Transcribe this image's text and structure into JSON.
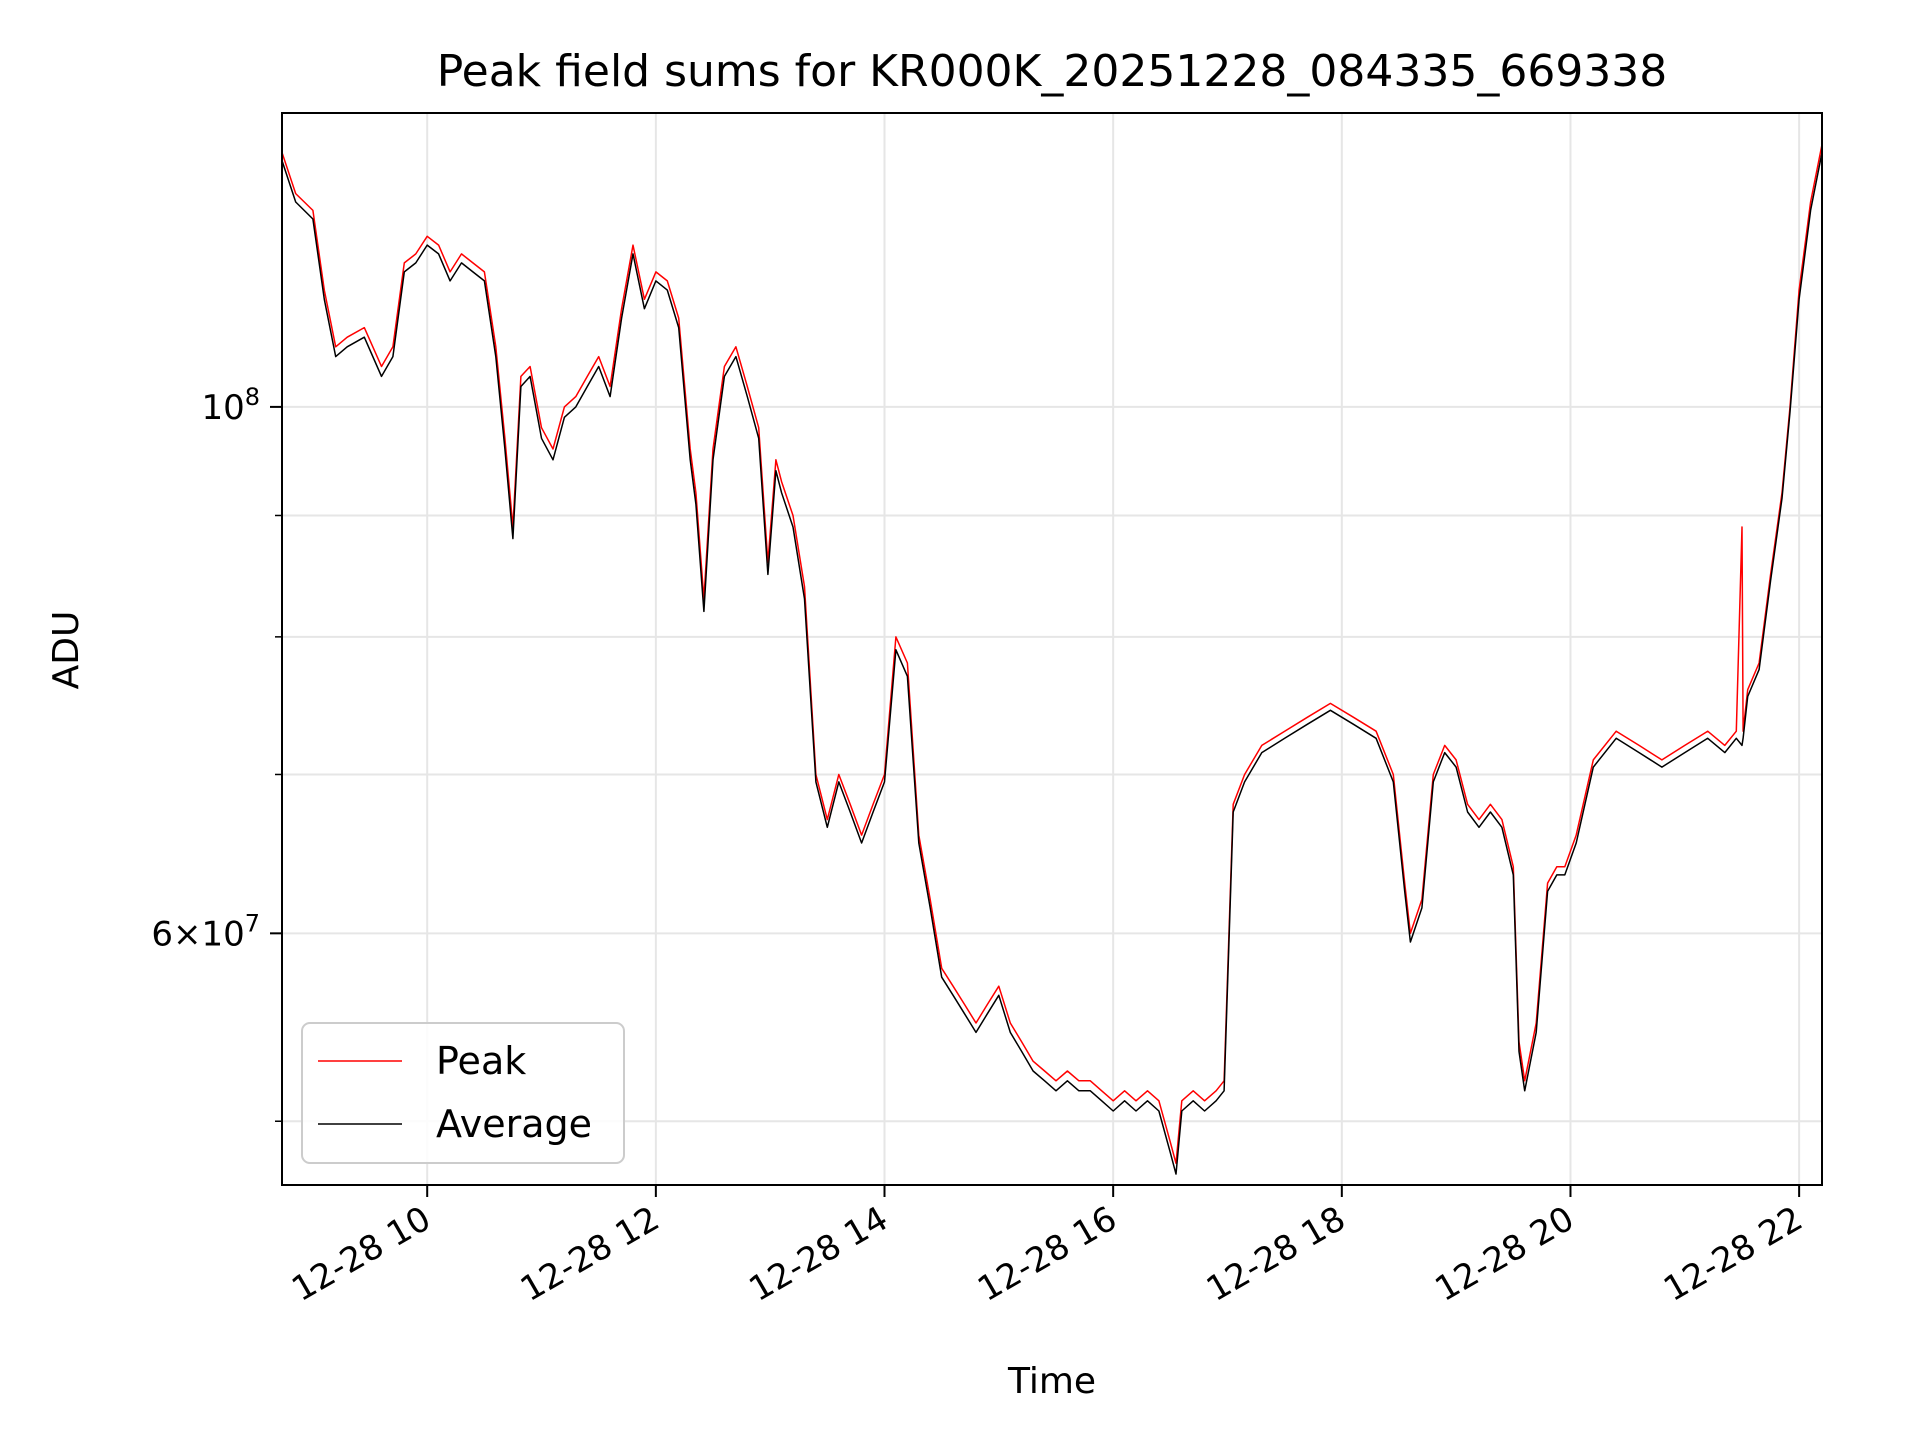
{
  "chart_data": {
    "type": "line",
    "title": "Peak field sums for KR000K_20251228_084335_669338",
    "xlabel": "Time",
    "ylabel": "ADU",
    "yscale": "log",
    "grid": true,
    "legend_location": "lower-left",
    "x_unit": "hours",
    "xlim": [
      8.73,
      22.2
    ],
    "ylim": [
      47000000,
      133000000
    ],
    "x_ticks": [
      {
        "value": 10,
        "label": "12-28 10"
      },
      {
        "value": 12,
        "label": "12-28 12"
      },
      {
        "value": 14,
        "label": "12-28 14"
      },
      {
        "value": 16,
        "label": "12-28 16"
      },
      {
        "value": 18,
        "label": "12-28 18"
      },
      {
        "value": 20,
        "label": "12-28 20"
      },
      {
        "value": 22,
        "label": "12-28 22"
      }
    ],
    "y_major_ticks": [
      {
        "value": 60000000,
        "mantissa": "6",
        "base": "10",
        "exp": "7"
      },
      {
        "value": 100000000,
        "mantissa": "",
        "base": "10",
        "exp": "8"
      }
    ],
    "y_minor_ticks": [
      50000000,
      70000000,
      80000000,
      90000000
    ],
    "series": [
      {
        "name": "Peak",
        "color": "#ff0000",
        "x": [
          8.73,
          8.85,
          9.0,
          9.1,
          9.2,
          9.3,
          9.45,
          9.6,
          9.7,
          9.8,
          9.9,
          10.0,
          10.1,
          10.2,
          10.3,
          10.4,
          10.5,
          10.6,
          10.68,
          10.75,
          10.82,
          10.9,
          11.0,
          11.1,
          11.2,
          11.3,
          11.4,
          11.5,
          11.6,
          11.7,
          11.8,
          11.9,
          12.0,
          12.1,
          12.2,
          12.3,
          12.35,
          12.42,
          12.5,
          12.6,
          12.7,
          12.8,
          12.9,
          12.98,
          13.05,
          13.1,
          13.2,
          13.3,
          13.4,
          13.5,
          13.6,
          13.7,
          13.8,
          13.9,
          14.0,
          14.1,
          14.2,
          14.3,
          14.4,
          14.5,
          14.6,
          14.7,
          14.8,
          14.9,
          15.0,
          15.1,
          15.2,
          15.3,
          15.4,
          15.5,
          15.6,
          15.7,
          15.8,
          15.9,
          16.0,
          16.1,
          16.2,
          16.3,
          16.4,
          16.5,
          16.55,
          16.6,
          16.7,
          16.8,
          16.9,
          16.97,
          17.05,
          17.15,
          17.3,
          17.5,
          17.7,
          17.9,
          18.1,
          18.3,
          18.45,
          18.55,
          18.6,
          18.7,
          18.8,
          18.9,
          19.0,
          19.1,
          19.2,
          19.3,
          19.4,
          19.5,
          19.55,
          19.6,
          19.7,
          19.8,
          19.88,
          19.95,
          20.05,
          20.2,
          20.4,
          20.6,
          20.8,
          21.0,
          21.2,
          21.35,
          21.45,
          21.5,
          21.51,
          21.55,
          21.65,
          21.75,
          21.85,
          21.92,
          22.0,
          22.1,
          22.2
        ],
        "values": [
          128000000,
          123000000,
          121000000,
          112000000,
          106000000,
          107000000,
          108000000,
          104000000,
          106000000,
          115000000,
          116000000,
          118000000,
          117000000,
          114000000,
          116000000,
          115000000,
          114000000,
          106000000,
          97000000,
          89000000,
          103000000,
          104000000,
          98000000,
          96000000,
          100000000,
          101000000,
          103000000,
          105000000,
          102000000,
          110000000,
          117000000,
          111000000,
          114000000,
          113000000,
          109000000,
          96000000,
          92000000,
          83000000,
          96000000,
          104000000,
          106000000,
          102000000,
          98000000,
          86000000,
          95000000,
          93000000,
          90000000,
          84000000,
          70000000,
          67000000,
          70000000,
          68000000,
          66000000,
          68000000,
          70000000,
          80000000,
          78000000,
          66000000,
          62000000,
          58000000,
          57000000,
          56000000,
          55000000,
          56000000,
          57000000,
          55000000,
          54000000,
          53000000,
          52500000,
          52000000,
          52500000,
          52000000,
          52000000,
          51500000,
          51000000,
          51500000,
          51000000,
          51500000,
          51000000,
          49000000,
          48000000,
          51000000,
          51500000,
          51000000,
          51500000,
          52000000,
          68000000,
          70000000,
          72000000,
          73000000,
          74000000,
          75000000,
          74000000,
          73000000,
          70000000,
          63000000,
          60000000,
          62000000,
          70000000,
          72000000,
          71000000,
          68000000,
          67000000,
          68000000,
          67000000,
          64000000,
          54000000,
          52000000,
          55000000,
          63000000,
          64000000,
          64000000,
          66000000,
          71000000,
          73000000,
          72000000,
          71000000,
          72000000,
          73000000,
          72000000,
          73000000,
          89000000,
          73000000,
          76000000,
          78000000,
          85000000,
          92000000,
          100000000,
          112000000,
          122000000,
          129000000
        ]
      },
      {
        "name": "Average",
        "color": "#000000",
        "x": [
          8.73,
          8.85,
          9.0,
          9.1,
          9.2,
          9.3,
          9.45,
          9.6,
          9.7,
          9.8,
          9.9,
          10.0,
          10.1,
          10.2,
          10.3,
          10.4,
          10.5,
          10.6,
          10.68,
          10.75,
          10.82,
          10.9,
          11.0,
          11.1,
          11.2,
          11.3,
          11.4,
          11.5,
          11.6,
          11.7,
          11.8,
          11.9,
          12.0,
          12.1,
          12.2,
          12.3,
          12.35,
          12.42,
          12.5,
          12.6,
          12.7,
          12.8,
          12.9,
          12.98,
          13.05,
          13.1,
          13.2,
          13.3,
          13.4,
          13.5,
          13.6,
          13.7,
          13.8,
          13.9,
          14.0,
          14.1,
          14.2,
          14.3,
          14.4,
          14.5,
          14.6,
          14.7,
          14.8,
          14.9,
          15.0,
          15.1,
          15.2,
          15.3,
          15.4,
          15.5,
          15.6,
          15.7,
          15.8,
          15.9,
          16.0,
          16.1,
          16.2,
          16.3,
          16.4,
          16.5,
          16.55,
          16.6,
          16.7,
          16.8,
          16.9,
          16.97,
          17.05,
          17.15,
          17.3,
          17.5,
          17.7,
          17.9,
          18.1,
          18.3,
          18.45,
          18.55,
          18.6,
          18.7,
          18.8,
          18.9,
          19.0,
          19.1,
          19.2,
          19.3,
          19.4,
          19.5,
          19.55,
          19.6,
          19.7,
          19.8,
          19.88,
          19.95,
          20.05,
          20.2,
          20.4,
          20.6,
          20.8,
          21.0,
          21.2,
          21.35,
          21.45,
          21.5,
          21.51,
          21.55,
          21.65,
          21.75,
          21.85,
          21.92,
          22.0,
          22.1,
          22.2
        ],
        "values": [
          127000000,
          122000000,
          120000000,
          111000000,
          105000000,
          106000000,
          107000000,
          103000000,
          105000000,
          114000000,
          115000000,
          117000000,
          116000000,
          113000000,
          115000000,
          114000000,
          113000000,
          105000000,
          96000000,
          88000000,
          102000000,
          103000000,
          97000000,
          95000000,
          99000000,
          100000000,
          102000000,
          104000000,
          101000000,
          109000000,
          116000000,
          110000000,
          113000000,
          112000000,
          108000000,
          95000000,
          91000000,
          82000000,
          95000000,
          103000000,
          105000000,
          101000000,
          97000000,
          85000000,
          94000000,
          92000000,
          89000000,
          83000000,
          69500000,
          66500000,
          69500000,
          67500000,
          65500000,
          67500000,
          69500000,
          79000000,
          77000000,
          65500000,
          61500000,
          57500000,
          56500000,
          55500000,
          54500000,
          55500000,
          56500000,
          54500000,
          53500000,
          52500000,
          52000000,
          51500000,
          52000000,
          51500000,
          51500000,
          51000000,
          50500000,
          51000000,
          50500000,
          51000000,
          50500000,
          48500000,
          47500000,
          50500000,
          51000000,
          50500000,
          51000000,
          51500000,
          67500000,
          69500000,
          71500000,
          72500000,
          73500000,
          74500000,
          73500000,
          72500000,
          69500000,
          62500000,
          59500000,
          61500000,
          69500000,
          71500000,
          70500000,
          67500000,
          66500000,
          67500000,
          66500000,
          63500000,
          53500000,
          51500000,
          54500000,
          62500000,
          63500000,
          63500000,
          65500000,
          70500000,
          72500000,
          71500000,
          70500000,
          71500000,
          72500000,
          71500000,
          72500000,
          72000000,
          72500000,
          75500000,
          77500000,
          84500000,
          91500000,
          99500000,
          111000000,
          121000000,
          128000000
        ]
      }
    ]
  }
}
